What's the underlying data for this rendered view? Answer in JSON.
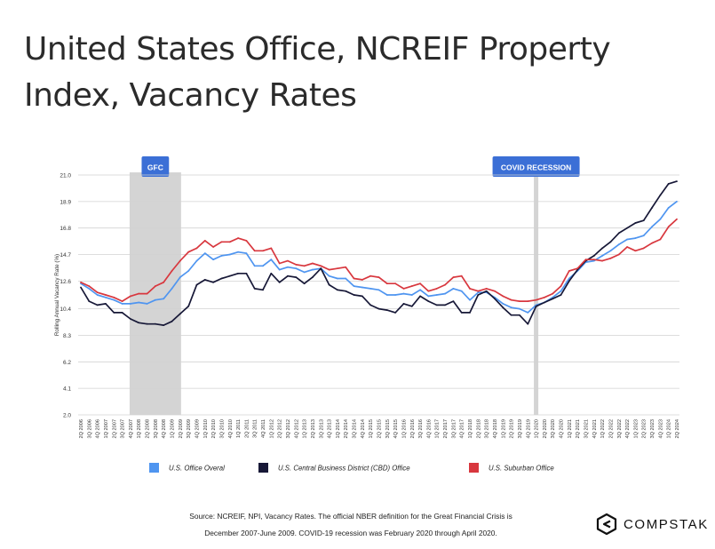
{
  "title_line1": "United States Office, NCREIF Property",
  "title_line2": "Index, Vacancy Rates",
  "chart_data": {
    "type": "line",
    "title": "United States Office, NCREIF Property Index, Vacancy Rates",
    "ylabel": "Rolling Annual Vacancy Rate (%)",
    "xlabel": "",
    "ylim": [
      2.0,
      21.0
    ],
    "yticks": [
      "21.0",
      "18.9",
      "16.8",
      "14.7",
      "12.6",
      "10.4",
      "8.3",
      "6.2",
      "4.1",
      "2.0"
    ],
    "grid": true,
    "legend_position": "bottom",
    "categories": [
      "2Q 2006",
      "3Q 2006",
      "4Q 2006",
      "1Q 2007",
      "2Q 2007",
      "3Q 2007",
      "4Q 2007",
      "1Q 2008",
      "2Q 2008",
      "3Q 2008",
      "4Q 2008",
      "1Q 2009",
      "2Q 2009",
      "3Q 2009",
      "4Q 2009",
      "1Q 2010",
      "2Q 2010",
      "3Q 2010",
      "4Q 2010",
      "1Q 2011",
      "2Q 2011",
      "3Q 2011",
      "4Q 2011",
      "1Q 2012",
      "2Q 2012",
      "3Q 2012",
      "4Q 2012",
      "1Q 2013",
      "2Q 2013",
      "3Q 2013",
      "4Q 2013",
      "1Q 2014",
      "2Q 2014",
      "3Q 2014",
      "4Q 2014",
      "1Q 2015",
      "2Q 2015",
      "3Q 2015",
      "4Q 2015",
      "1Q 2016",
      "2Q 2016",
      "3Q 2016",
      "4Q 2016",
      "1Q 2017",
      "2Q 2017",
      "3Q 2017",
      "4Q 2017",
      "1Q 2018",
      "2Q 2018",
      "3Q 2018",
      "4Q 2018",
      "1Q 2019",
      "2Q 2019",
      "3Q 2019",
      "4Q 2019",
      "1Q 2020",
      "2Q 2020",
      "3Q 2020",
      "4Q 2020",
      "1Q 2021",
      "2Q 2021",
      "3Q 2021",
      "4Q 2021",
      "1Q 2022",
      "2Q 2022",
      "3Q 2022",
      "4Q 2022",
      "1Q 2023",
      "2Q 2023",
      "3Q 2023",
      "4Q 2023",
      "1Q 2024",
      "2Q 2024"
    ],
    "series": [
      {
        "name": "U.S. Office Overal",
        "color": "#4f95f0",
        "values": [
          12.4,
          12.0,
          11.5,
          11.3,
          11.1,
          10.8,
          10.8,
          10.9,
          10.8,
          11.1,
          11.2,
          12.0,
          12.9,
          13.4,
          14.2,
          14.8,
          14.3,
          14.6,
          14.7,
          14.9,
          14.8,
          13.8,
          13.8,
          14.3,
          13.5,
          13.7,
          13.6,
          13.3,
          13.5,
          13.6,
          13.0,
          12.8,
          12.8,
          12.2,
          12.1,
          12.0,
          11.9,
          11.5,
          11.5,
          11.6,
          11.5,
          11.9,
          11.4,
          11.5,
          11.6,
          12.0,
          11.8,
          11.1,
          11.7,
          11.7,
          11.3,
          10.8,
          10.5,
          10.4,
          10.1,
          10.7,
          10.9,
          11.3,
          11.8,
          12.8,
          13.4,
          14.1,
          14.2,
          14.6,
          15.0,
          15.5,
          15.9,
          16.0,
          16.2,
          16.9,
          17.5,
          18.4,
          18.9
        ]
      },
      {
        "name": "U.S. Central Business District (CBD) Office",
        "color": "#171837",
        "values": [
          12.1,
          11.0,
          10.7,
          10.8,
          10.1,
          10.1,
          9.6,
          9.3,
          9.2,
          9.2,
          9.1,
          9.4,
          10.0,
          10.6,
          12.3,
          12.7,
          12.5,
          12.8,
          13.0,
          13.2,
          13.2,
          12.0,
          11.9,
          13.2,
          12.5,
          13.0,
          12.9,
          12.4,
          12.9,
          13.6,
          12.3,
          11.9,
          11.8,
          11.5,
          11.4,
          10.7,
          10.4,
          10.3,
          10.1,
          10.8,
          10.6,
          11.4,
          11.0,
          10.7,
          10.7,
          11.0,
          10.1,
          10.1,
          11.5,
          11.8,
          11.2,
          10.5,
          9.9,
          9.9,
          9.2,
          10.6,
          10.9,
          11.2,
          11.5,
          12.6,
          13.5,
          14.2,
          14.6,
          15.2,
          15.7,
          16.4,
          16.8,
          17.2,
          17.4,
          18.4,
          19.4,
          20.3,
          20.5
        ]
      },
      {
        "name": "U.S. Suburban Office",
        "color": "#d8373e",
        "values": [
          12.5,
          12.2,
          11.7,
          11.5,
          11.3,
          11.0,
          11.4,
          11.6,
          11.6,
          12.2,
          12.5,
          13.4,
          14.2,
          14.9,
          15.2,
          15.8,
          15.3,
          15.7,
          15.7,
          16.0,
          15.8,
          15.0,
          15.0,
          15.2,
          14.0,
          14.2,
          13.9,
          13.8,
          14.0,
          13.8,
          13.5,
          13.6,
          13.7,
          12.8,
          12.7,
          13.0,
          12.9,
          12.4,
          12.4,
          12.0,
          12.2,
          12.4,
          11.8,
          12.0,
          12.3,
          12.9,
          13.0,
          12.0,
          11.8,
          12.0,
          11.8,
          11.4,
          11.1,
          11.0,
          11.0,
          11.1,
          11.3,
          11.6,
          12.2,
          13.4,
          13.6,
          14.3,
          14.3,
          14.2,
          14.4,
          14.7,
          15.3,
          15.0,
          15.2,
          15.6,
          15.9,
          16.9,
          17.5
        ]
      }
    ],
    "shaded_regions": [
      {
        "label": "GFC",
        "from": "4Q 2007",
        "to": "2Q 2009"
      },
      {
        "label": "COVID RECESSION",
        "from": "1Q 2020",
        "to": "1Q 2020"
      }
    ]
  },
  "source_line1": "Source: NCREIF, NPI, Vacancy Rates. The official NBER definition for the Great Financial Crisis is",
  "source_line2": "December 2007-June 2009. COVID-19 recession was February 2020 through April 2020.",
  "logo_text": "COMPSTAK"
}
